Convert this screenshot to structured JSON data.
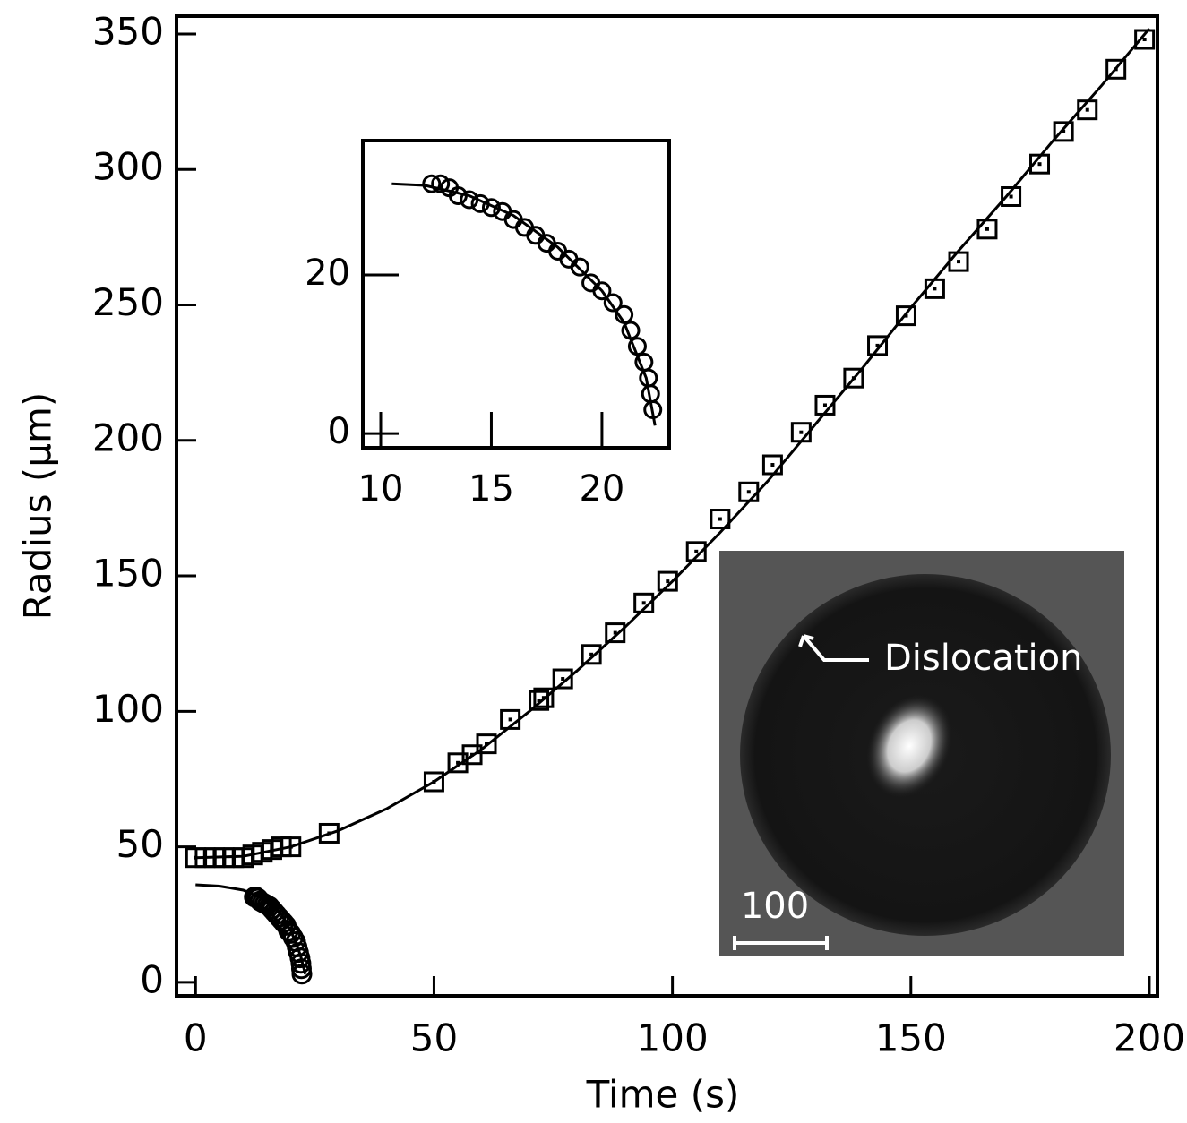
{
  "chart_data": [
    {
      "type": "scatter",
      "xlabel": "Time (s)",
      "ylabel": "Radius (µm)",
      "xlim": [
        -4,
        201.7
      ],
      "ylim": [
        -5,
        356.6
      ],
      "xticks": [
        0,
        50,
        100,
        150,
        200
      ],
      "yticks": [
        0,
        50,
        100,
        150,
        200,
        250,
        300,
        350
      ],
      "annotations": [
        "Dislocation",
        "100"
      ],
      "series": [
        {
          "marker": "square",
          "color": "#000000",
          "x": [
            0,
            2,
            4,
            6,
            8,
            10,
            12,
            14,
            16,
            18,
            20,
            28,
            50,
            55,
            58,
            61,
            66,
            72,
            73,
            77,
            83,
            88,
            94,
            99,
            105,
            110,
            116,
            121,
            127,
            132,
            138,
            143,
            149,
            155,
            160,
            166,
            171,
            177,
            182,
            187,
            193,
            199
          ],
          "values": [
            46,
            46,
            46,
            46,
            46,
            46,
            47,
            48,
            49,
            50,
            50,
            55,
            74,
            81,
            84,
            88,
            97,
            104,
            105,
            112,
            121,
            129,
            140,
            148,
            159,
            171,
            181,
            191,
            203,
            213,
            223,
            235,
            246,
            256,
            266,
            278,
            290,
            302,
            314,
            322,
            337,
            348
          ]
        },
        {
          "marker": "none",
          "color": "#000000",
          "x": [
            0,
            10,
            20,
            30,
            40,
            50,
            60,
            70,
            80,
            90,
            100,
            110,
            120,
            130,
            140,
            150,
            160,
            170,
            180,
            190,
            200
          ],
          "values": [
            46,
            46.5,
            50,
            56,
            64,
            74,
            86,
            100,
            115,
            131,
            148,
            166,
            185,
            206,
            227,
            249,
            270,
            290,
            311,
            331,
            352
          ]
        },
        {
          "marker": "circle",
          "color": "#000000",
          "x": [
            12.3,
            12.7,
            13.1,
            13.5,
            14,
            14.5,
            15,
            15.5,
            16,
            16.5,
            17,
            17.5,
            18,
            18.5,
            19,
            19.5,
            20,
            20.5,
            21,
            21.3,
            21.6,
            21.9,
            22.1,
            22.2,
            22.3
          ],
          "values": [
            31.5,
            31.5,
            31,
            30,
            29.5,
            29,
            28.5,
            28,
            27,
            26,
            25,
            24,
            23,
            22,
            21,
            19,
            18,
            16.5,
            15,
            13,
            11,
            9,
            7,
            5,
            3
          ]
        },
        {
          "marker": "none",
          "color": "#000000",
          "x": [
            0,
            5,
            10,
            14,
            18,
            20,
            22,
            23
          ],
          "values": [
            36,
            35.5,
            34,
            31,
            25,
            19,
            10,
            3
          ]
        }
      ]
    },
    {
      "type": "scatter",
      "xlim": [
        9.19,
        23.04
      ],
      "ylim": [
        -1.8,
        36.95
      ],
      "xticks": [
        10,
        15,
        20
      ],
      "yticks": [
        0,
        20
      ],
      "series": [
        {
          "marker": "circle",
          "color": "#000000",
          "x": [
            12.3,
            12.7,
            13.1,
            13.5,
            14,
            14.5,
            15,
            15.5,
            16,
            16.5,
            17,
            17.5,
            18,
            18.5,
            19,
            19.5,
            20,
            20.5,
            21,
            21.3,
            21.6,
            21.9,
            22.1,
            22.2,
            22.3
          ],
          "values": [
            31.5,
            31.5,
            31,
            30,
            29.5,
            29,
            28.5,
            28,
            27,
            26,
            25,
            24,
            23,
            22,
            21,
            19,
            18,
            16.5,
            15,
            13,
            11,
            9,
            7,
            5,
            3
          ]
        },
        {
          "marker": "none",
          "color": "#000000",
          "x": [
            10.5,
            12,
            14,
            16,
            18,
            20,
            21,
            22,
            22.4
          ],
          "values": [
            31.5,
            31.3,
            30,
            27.5,
            23.5,
            18,
            14,
            7,
            1
          ]
        }
      ]
    }
  ]
}
